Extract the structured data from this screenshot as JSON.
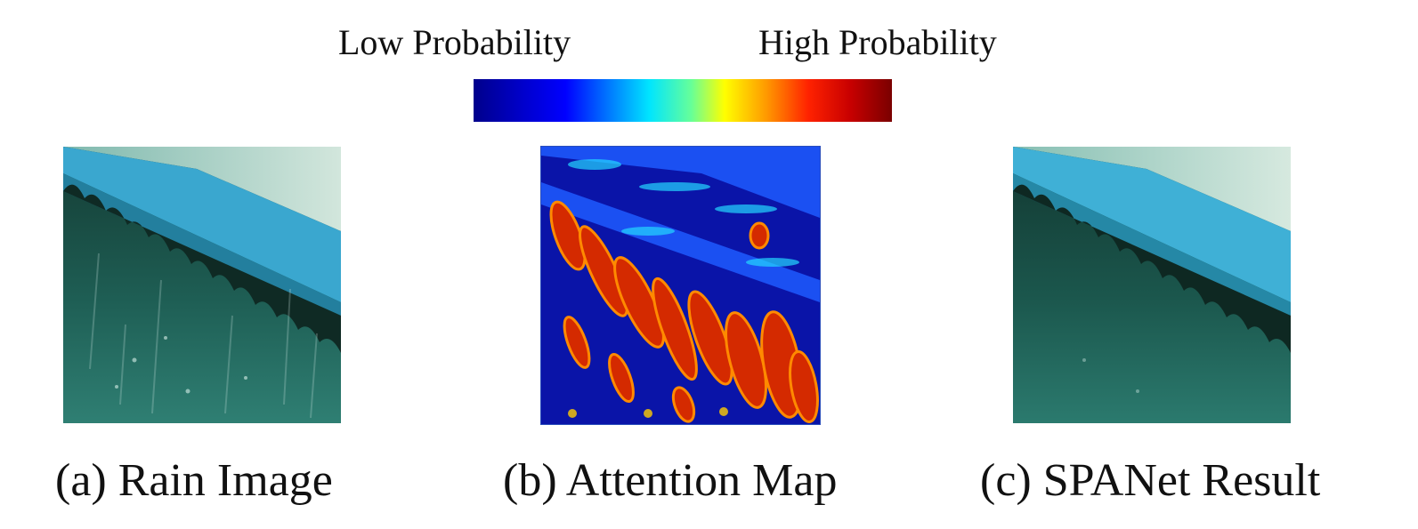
{
  "colorbar": {
    "low_label": "Low Probability",
    "high_label": "High Probability",
    "colors": [
      "#00008b",
      "#0000ff",
      "#00e5ff",
      "#ffff00",
      "#ff2200",
      "#7a0000"
    ]
  },
  "panels": [
    {
      "caption": "(a) Rain Image"
    },
    {
      "caption": "(b) Attention Map"
    },
    {
      "caption": "(c) SPANet Result"
    }
  ],
  "palette": {
    "roof_blue": "#3aa7cf",
    "water_teal": "#1c5b52",
    "attention_low": "#0a14a8",
    "attention_high": "#d42a00"
  }
}
